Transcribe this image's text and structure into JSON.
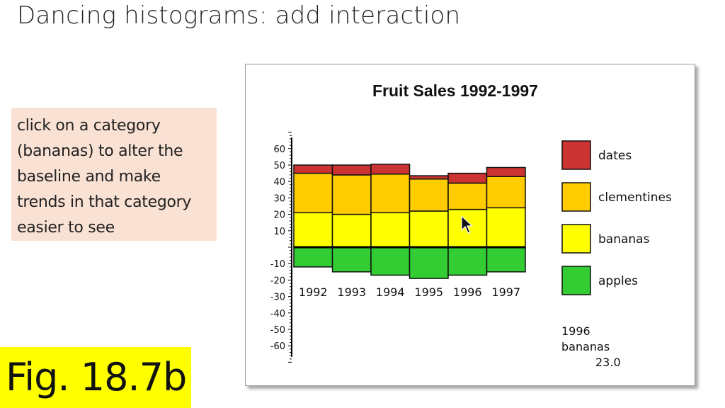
{
  "slide": {
    "title": "Dancing histograms: add interaction",
    "note_lines": [
      "click on a category",
      "(bananas) to alter the",
      "baseline and make",
      "trends in that category",
      "easier to see"
    ],
    "fig_label": "Fig. 18.7b"
  },
  "chart_data": {
    "type": "bar",
    "stacked": true,
    "baseline_category": "bananas",
    "title": "Fruit Sales 1992-1997",
    "xlabel": "",
    "ylabel": "",
    "ylim": [
      -65,
      65
    ],
    "y_tick_labels": [
      "60",
      "50",
      "40",
      "30",
      "20",
      "10",
      "-10",
      "-20",
      "-30",
      "-40",
      "-50",
      "-60"
    ],
    "categories": [
      "1992",
      "1993",
      "1994",
      "1995",
      "1996",
      "1997"
    ],
    "series": [
      {
        "name": "dates",
        "color": "#cc3333",
        "values": [
          5,
          6,
          6,
          2,
          6,
          5.5
        ]
      },
      {
        "name": "clementines",
        "color": "#ffcc00",
        "values": [
          24,
          24,
          23.5,
          19.5,
          16,
          19
        ]
      },
      {
        "name": "bananas",
        "color": "#ffff00",
        "values": [
          21,
          20,
          21,
          22,
          23,
          24
        ]
      },
      {
        "name": "apples",
        "color": "#33cc33",
        "values": [
          12,
          15,
          17,
          19,
          17,
          15
        ]
      }
    ],
    "legend": {
      "placement": "right",
      "entries": [
        "dates",
        "clementines",
        "bananas",
        "apples"
      ]
    },
    "readout": {
      "year": "1996",
      "category": "bananas",
      "value": "23.0"
    }
  },
  "icons": {
    "cursor": "arrow-cursor-icon"
  }
}
